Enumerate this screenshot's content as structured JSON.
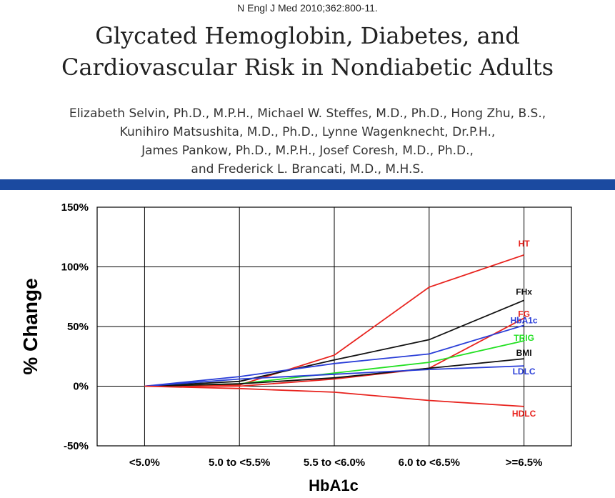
{
  "header": {
    "citation": "N Engl J Med 2010;362:800-11.",
    "title_line1": "Glycated Hemoglobin, Diabetes, and",
    "title_line2": "Cardiovascular Risk in Nondiabetic Adults",
    "authors_line1": "Elizabeth Selvin, Ph.D., M.P.H., Michael W. Steffes, M.D., Ph.D., Hong Zhu, B.S.,",
    "authors_line2": "Kunihiro Matsushita, M.D., Ph.D., Lynne Wagenknecht, Dr.P.H.,",
    "authors_line3": "James Pankow, Ph.D., M.P.H., Josef Coresh, M.D., Ph.D.,",
    "authors_line4": "and Frederick L. Brancati, M.D., M.H.S.",
    "band_color": "#1b4aa0"
  },
  "chart_data": {
    "type": "line",
    "xlabel": "HbA1c",
    "ylabel": "% Change",
    "categories": [
      "<5.0%",
      "5.0 to <5.5%",
      "5.5 to <6.0%",
      "6.0 to <6.5%",
      ">=6.5%"
    ],
    "ylim": [
      -50,
      150
    ],
    "yticks": [
      -50,
      0,
      50,
      100,
      150
    ],
    "ytick_labels": [
      "-50%",
      "0%",
      "50%",
      "100%",
      "150%"
    ],
    "grid": true,
    "series": [
      {
        "name": "HT",
        "color": "#e8231e",
        "values": [
          0,
          1,
          26,
          83,
          110
        ]
      },
      {
        "name": "FHx",
        "color": "#111111",
        "values": [
          0,
          4,
          22,
          39,
          72
        ]
      },
      {
        "name": "FG",
        "color": "#e8231e",
        "values": [
          0,
          0,
          6,
          15,
          57
        ]
      },
      {
        "name": "HbA1c",
        "color": "#2a3ed8",
        "values": [
          0,
          8,
          19,
          27,
          51
        ]
      },
      {
        "name": "TRIG",
        "color": "#22e022",
        "values": [
          0,
          2,
          11,
          20,
          38
        ]
      },
      {
        "name": "BMI",
        "color": "#111111",
        "values": [
          0,
          2,
          7,
          15,
          23
        ]
      },
      {
        "name": "LDLC",
        "color": "#2a3ed8",
        "values": [
          0,
          6,
          10,
          14,
          17
        ]
      },
      {
        "name": "HDLC",
        "color": "#e8231e",
        "values": [
          0,
          -2,
          -5,
          -12,
          -17
        ]
      }
    ]
  }
}
